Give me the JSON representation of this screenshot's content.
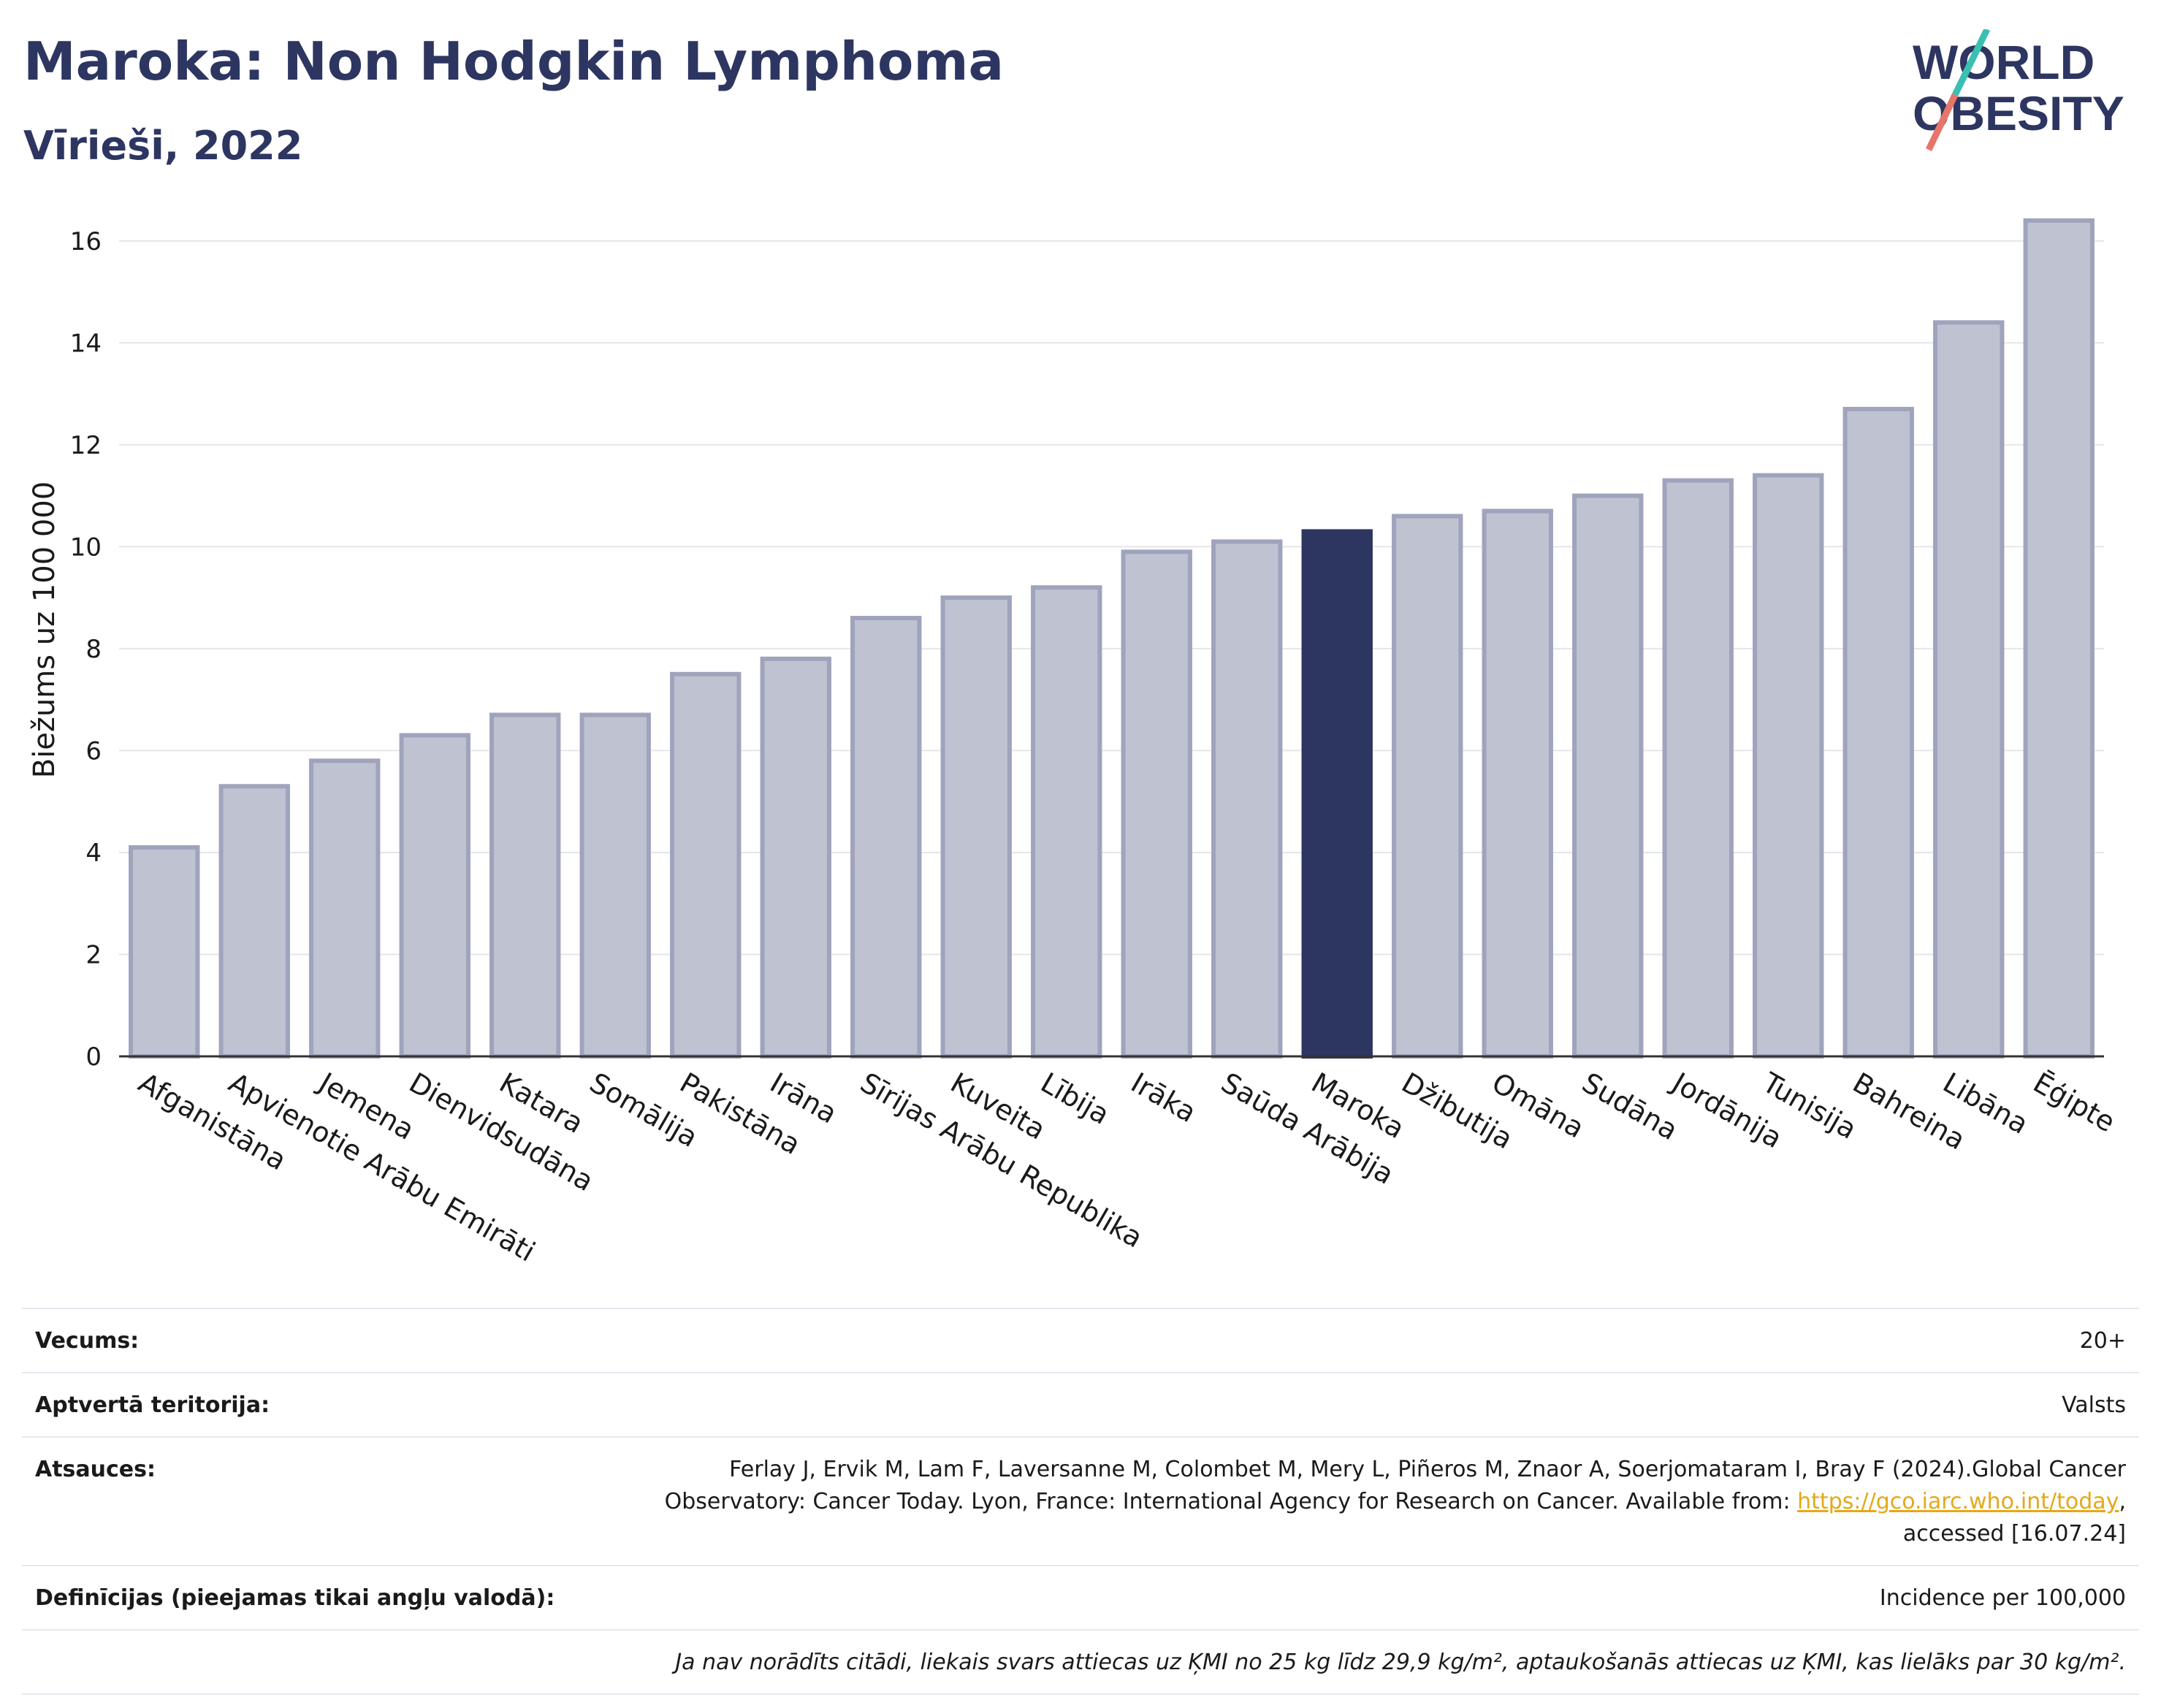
{
  "header": {
    "title": "Maroka: Non Hodgkin Lymphoma",
    "subtitle": "Vīrieši, 2022"
  },
  "logo": {
    "line1": "WORLD",
    "line2": "OBESITY"
  },
  "colors": {
    "highlight": "#2d3561",
    "bar": "#bfc2d1",
    "bar_border": "#9fa4bc",
    "title": "#2d3561",
    "link": "#e6a817"
  },
  "chart_data": {
    "type": "bar",
    "ylabel": "Biežums uz 100 000",
    "ylim": [
      0,
      17
    ],
    "yticks": [
      0,
      2,
      4,
      6,
      8,
      10,
      12,
      14,
      16
    ],
    "grid": true,
    "highlight": "Maroka",
    "categories": [
      "Afganistāna",
      "Apvienotie Arābu Emirāti",
      "Jemena",
      "Dienvidsudāna",
      "Katara",
      "Somālija",
      "Pakistāna",
      "Irāna",
      "Sīrijas Arābu Republika",
      "Kuveita",
      "Lībija",
      "Irāka",
      "Saūda Arābija",
      "Maroka",
      "Džibutija",
      "Omāna",
      "Sudāna",
      "Jordānija",
      "Tunisija",
      "Bahreina",
      "Libāna",
      "Ēģipte"
    ],
    "values": [
      4.1,
      5.3,
      5.8,
      6.3,
      6.7,
      6.7,
      7.5,
      7.8,
      8.6,
      9.0,
      9.2,
      9.9,
      10.1,
      10.3,
      10.6,
      10.7,
      11.0,
      11.3,
      11.4,
      12.7,
      14.4,
      16.4
    ]
  },
  "info": {
    "age_label": "Vecums:",
    "age_value": "20+",
    "coverage_label": "Aptvertā teritorija:",
    "coverage_value": "Valsts",
    "refs_label": "Atsauces:",
    "refs_text_1": "Ferlay J, Ervik M, Lam F, Laversanne M, Colombet M, Mery L, Piñeros M, Znaor A, Soerjomataram I, Bray F (2024).Global Cancer Observatory: Cancer Today. Lyon, France: International Agency for Research on Cancer. Available from: ",
    "refs_link": "https://gco.iarc.who.int/today",
    "refs_text_2": ", accessed [16.07.24]",
    "defs_label": "Definīcijas (pieejamas tikai angļu valodā):",
    "defs_value": "Incidence per 100,000",
    "note": "Ja nav norādīts citādi, liekais svars attiecas uz ĶMI no 25 kg līdz 29,9 kg/m², aptaukošanās attiecas uz ĶMI, kas lielāks par 30 kg/m²."
  }
}
